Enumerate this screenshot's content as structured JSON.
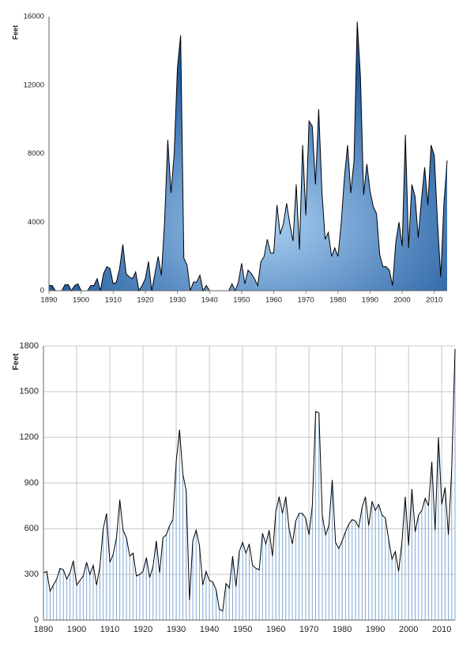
{
  "chart_data": [
    {
      "type": "area",
      "y_label": "Feet",
      "x": [
        1890,
        1891,
        1892,
        1893,
        1894,
        1895,
        1896,
        1897,
        1898,
        1899,
        1900,
        1901,
        1902,
        1903,
        1904,
        1905,
        1906,
        1907,
        1908,
        1909,
        1910,
        1911,
        1912,
        1913,
        1914,
        1915,
        1916,
        1917,
        1918,
        1919,
        1920,
        1921,
        1922,
        1923,
        1924,
        1925,
        1926,
        1927,
        1928,
        1929,
        1930,
        1931,
        1932,
        1933,
        1934,
        1935,
        1936,
        1937,
        1938,
        1939,
        1940,
        1941,
        1942,
        1943,
        1944,
        1945,
        1946,
        1947,
        1948,
        1949,
        1950,
        1951,
        1952,
        1953,
        1954,
        1955,
        1956,
        1957,
        1958,
        1959,
        1960,
        1961,
        1962,
        1963,
        1964,
        1965,
        1966,
        1967,
        1968,
        1969,
        1970,
        1971,
        1972,
        1973,
        1974,
        1975,
        1976,
        1977,
        1978,
        1979,
        1980,
        1981,
        1982,
        1983,
        1984,
        1985,
        1986,
        1987,
        1988,
        1989,
        1990,
        1991,
        1992,
        1993,
        1994,
        1995,
        1996,
        1997,
        1998,
        1999,
        2000,
        2001,
        2002,
        2003,
        2004,
        2005,
        2006,
        2007,
        2008,
        2009,
        2010,
        2011,
        2012,
        2013,
        2014
      ],
      "values": [
        300,
        300,
        0,
        0,
        0,
        350,
        350,
        0,
        300,
        400,
        0,
        0,
        0,
        300,
        300,
        700,
        0,
        1000,
        1400,
        1300,
        400,
        500,
        1300,
        2700,
        1000,
        800,
        700,
        1100,
        0,
        300,
        700,
        1700,
        0,
        1000,
        2000,
        900,
        4000,
        8800,
        5700,
        8000,
        13000,
        14900,
        1900,
        1500,
        0,
        500,
        500,
        900,
        0,
        300,
        0,
        0,
        0,
        0,
        0,
        0,
        0,
        400,
        0,
        500,
        1600,
        400,
        1200,
        1000,
        700,
        300,
        1700,
        2000,
        3000,
        2200,
        2200,
        5000,
        3300,
        3900,
        5100,
        3900,
        2900,
        6200,
        2400,
        8500,
        4400,
        9900,
        9600,
        6200,
        10600,
        5800,
        3000,
        3400,
        2000,
        2500,
        2000,
        3900,
        6600,
        8500,
        5700,
        7600,
        15700,
        12500,
        5600,
        7400,
        5800,
        4900,
        4500,
        2100,
        1400,
        1400,
        1200,
        300,
        2800,
        4000,
        2600,
        9100,
        2500,
        6200,
        5500,
        3100,
        5300,
        7200,
        5000,
        8500,
        7900,
        4000,
        800,
        5100,
        7600
      ],
      "xlim": [
        1890,
        2014
      ],
      "xticks": [
        1890,
        1900,
        1910,
        1920,
        1930,
        1940,
        1950,
        1960,
        1970,
        1980,
        1990,
        2000,
        2010
      ],
      "ylim": [
        0,
        16000
      ],
      "yticks": [
        0,
        4000,
        8000,
        12000,
        16000
      ],
      "gradient": [
        "#a9cff2",
        "#1f5a9e"
      ],
      "line_color": "#000000",
      "grid": false
    },
    {
      "type": "line",
      "y_label": "Feet",
      "x": [
        1890,
        1891,
        1892,
        1893,
        1894,
        1895,
        1896,
        1897,
        1898,
        1899,
        1900,
        1901,
        1902,
        1903,
        1904,
        1905,
        1906,
        1907,
        1908,
        1909,
        1910,
        1911,
        1912,
        1913,
        1914,
        1915,
        1916,
        1917,
        1918,
        1919,
        1920,
        1921,
        1922,
        1923,
        1924,
        1925,
        1926,
        1927,
        1928,
        1929,
        1930,
        1931,
        1932,
        1933,
        1934,
        1935,
        1936,
        1937,
        1938,
        1939,
        1940,
        1941,
        1942,
        1943,
        1944,
        1945,
        1946,
        1947,
        1948,
        1949,
        1950,
        1951,
        1952,
        1953,
        1954,
        1955,
        1956,
        1957,
        1958,
        1959,
        1960,
        1961,
        1962,
        1963,
        1964,
        1965,
        1966,
        1967,
        1968,
        1969,
        1970,
        1971,
        1972,
        1973,
        1974,
        1975,
        1976,
        1977,
        1978,
        1979,
        1980,
        1981,
        1982,
        1983,
        1984,
        1985,
        1986,
        1987,
        1988,
        1989,
        1990,
        1991,
        1992,
        1993,
        1994,
        1995,
        1996,
        1997,
        1998,
        1999,
        2000,
        2001,
        2002,
        2003,
        2004,
        2005,
        2006,
        2007,
        2008,
        2009,
        2010,
        2011,
        2012,
        2013,
        2014
      ],
      "values": [
        310,
        320,
        190,
        230,
        270,
        340,
        330,
        270,
        310,
        390,
        230,
        260,
        290,
        380,
        300,
        360,
        230,
        350,
        600,
        700,
        380,
        430,
        540,
        790,
        590,
        540,
        420,
        440,
        290,
        300,
        320,
        410,
        280,
        350,
        520,
        310,
        540,
        560,
        620,
        660,
        1040,
        1250,
        960,
        850,
        130,
        520,
        590,
        490,
        230,
        320,
        260,
        250,
        200,
        70,
        60,
        240,
        210,
        420,
        220,
        450,
        510,
        440,
        500,
        360,
        340,
        330,
        570,
        500,
        590,
        420,
        710,
        810,
        700,
        810,
        600,
        500,
        650,
        700,
        700,
        670,
        560,
        750,
        1370,
        1360,
        690,
        560,
        620,
        920,
        510,
        470,
        520,
        580,
        630,
        660,
        650,
        610,
        740,
        810,
        620,
        780,
        720,
        760,
        690,
        670,
        530,
        400,
        450,
        320,
        510,
        810,
        490,
        860,
        580,
        690,
        720,
        800,
        750,
        1040,
        590,
        1200,
        760,
        870,
        560,
        990,
        1780
      ],
      "xlim": [
        1890,
        2014
      ],
      "xticks": [
        1890,
        1900,
        1910,
        1920,
        1930,
        1940,
        1950,
        1960,
        1970,
        1980,
        1990,
        2000,
        2010
      ],
      "ylim": [
        0,
        1800
      ],
      "yticks": [
        0,
        300,
        600,
        900,
        1200,
        1500,
        1800
      ],
      "drop_color": "#7fa8d6",
      "line_color": "#000000",
      "grid": true
    }
  ]
}
